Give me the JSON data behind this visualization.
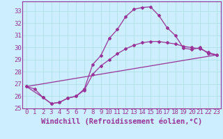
{
  "xlabel": "Windchill (Refroidissement éolien,°C)",
  "bg_color": "#cceeff",
  "line_color": "#993399",
  "xlim": [
    -0.5,
    23.5
  ],
  "ylim": [
    25,
    33.8
  ],
  "yticks": [
    25,
    26,
    27,
    28,
    29,
    30,
    31,
    32,
    33
  ],
  "xticks": [
    0,
    1,
    2,
    3,
    4,
    5,
    6,
    7,
    8,
    9,
    10,
    11,
    12,
    13,
    14,
    15,
    16,
    17,
    18,
    19,
    20,
    21,
    22,
    23
  ],
  "line1_x": [
    0,
    1,
    2,
    3,
    4,
    5,
    6,
    7,
    8,
    9,
    10,
    11,
    12,
    13,
    14,
    15,
    16,
    17,
    18,
    19,
    20,
    21,
    22,
    23
  ],
  "line1_y": [
    26.8,
    26.6,
    25.9,
    25.4,
    25.5,
    25.85,
    26.0,
    26.6,
    28.6,
    29.35,
    30.75,
    31.5,
    32.55,
    33.15,
    33.3,
    33.35,
    32.65,
    31.65,
    31.0,
    29.95,
    29.85,
    30.0,
    29.5,
    29.4
  ],
  "line2_x": [
    0,
    2,
    3,
    4,
    5,
    6,
    7,
    8,
    9,
    10,
    11,
    12,
    13,
    14,
    15,
    16,
    17,
    18,
    19,
    20,
    21,
    22,
    23
  ],
  "line2_y": [
    26.8,
    25.9,
    25.4,
    25.5,
    25.85,
    26.0,
    26.5,
    27.8,
    28.5,
    29.0,
    29.5,
    29.9,
    30.2,
    30.4,
    30.5,
    30.5,
    30.4,
    30.3,
    30.1,
    30.0,
    29.9,
    29.6,
    29.4
  ],
  "line3_x": [
    0,
    23
  ],
  "line3_y": [
    26.8,
    29.4
  ],
  "grid_color": "#aadde0",
  "tick_label_fontsize": 6.5,
  "xlabel_fontsize": 7.5
}
